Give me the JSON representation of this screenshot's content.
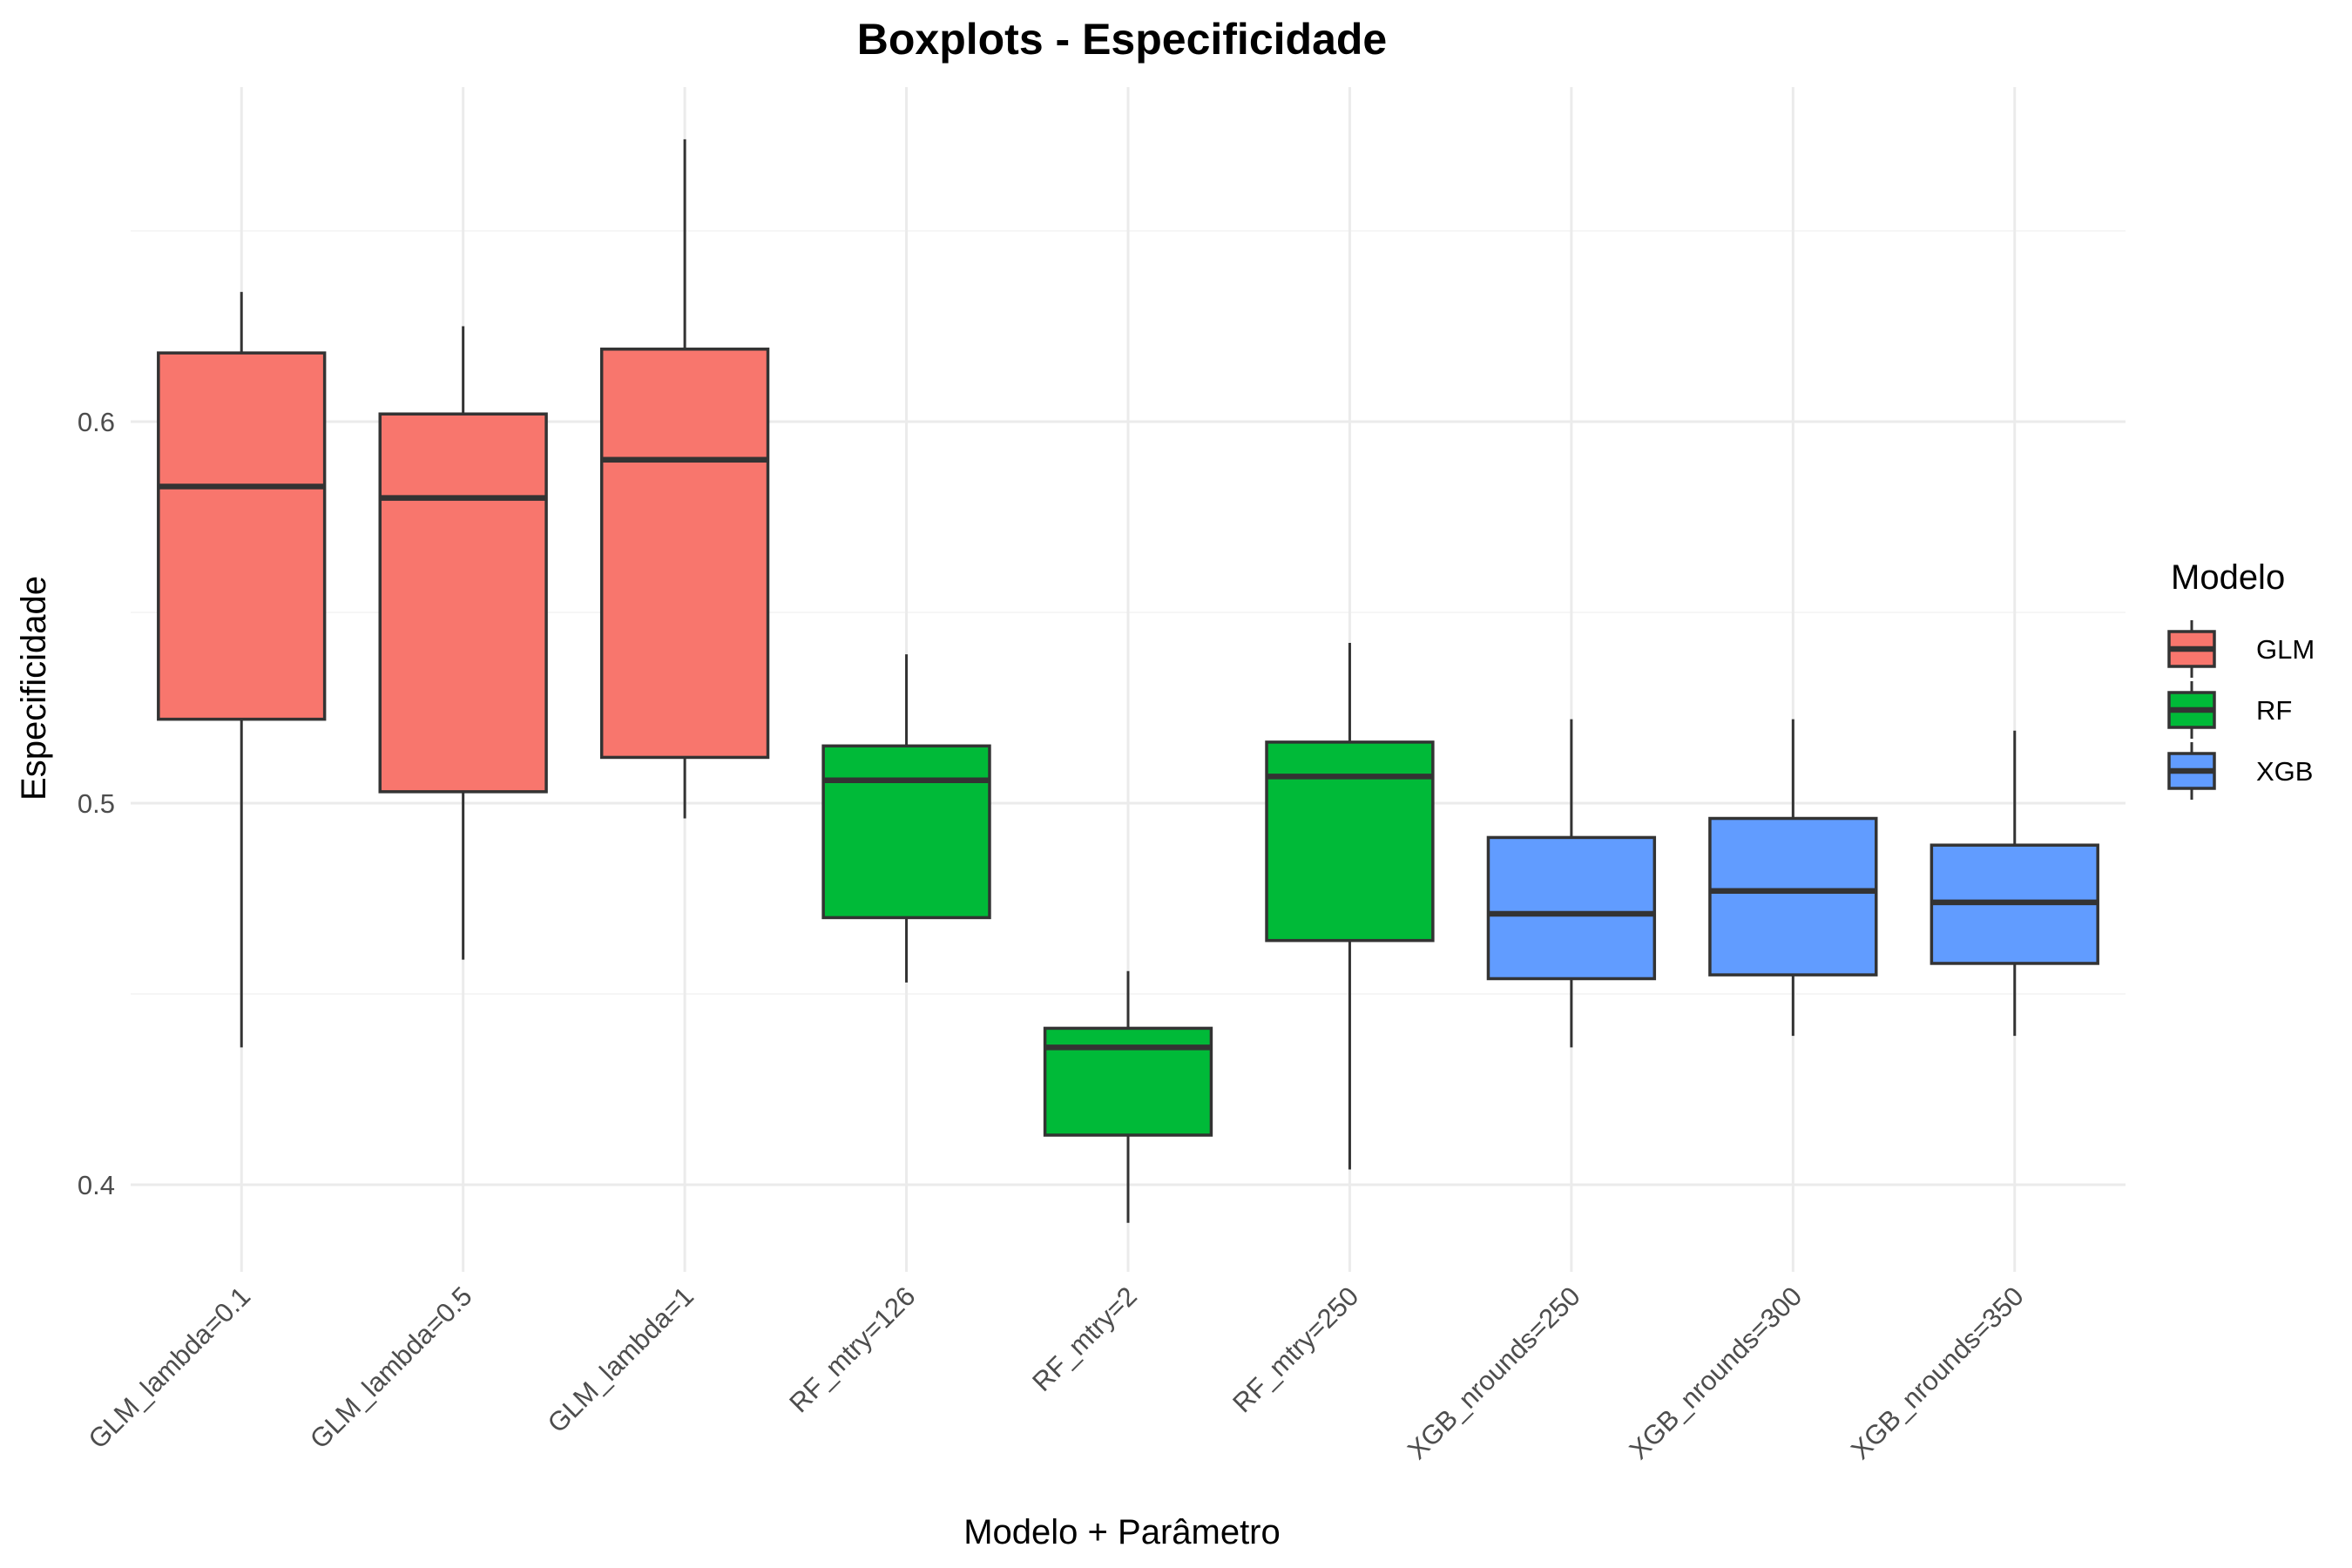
{
  "chart_data": {
    "type": "boxplot",
    "title": "Boxplots - Especificidade",
    "xlabel": "Modelo + Parâmetro",
    "ylabel": "Especificidade",
    "ylim": [
      0.375,
      0.685
    ],
    "yticks": [
      0.4,
      0.5,
      0.6
    ],
    "ytick_labels": [
      "0.4",
      "0.5",
      "0.6"
    ],
    "grid": true,
    "legend": {
      "title": "Modelo",
      "position": "right",
      "entries": [
        {
          "name": "GLM",
          "color": "#F8766D"
        },
        {
          "name": "RF",
          "color": "#00BA38"
        },
        {
          "name": "XGB",
          "color": "#619CFF"
        }
      ]
    },
    "categories": [
      "GLM_lambda=0.1",
      "GLM_lambda=0.5",
      "GLM_lambda=1",
      "RF_mtry=126",
      "RF_mtry=2",
      "RF_mtry=250",
      "XGB_nrounds=250",
      "XGB_nrounds=300",
      "XGB_nrounds=350"
    ],
    "boxes": [
      {
        "category": "GLM_lambda=0.1",
        "group": "GLM",
        "min": 0.436,
        "q1": 0.522,
        "median": 0.583,
        "q3": 0.618,
        "max": 0.634
      },
      {
        "category": "GLM_lambda=0.5",
        "group": "GLM",
        "min": 0.459,
        "q1": 0.503,
        "median": 0.58,
        "q3": 0.602,
        "max": 0.625
      },
      {
        "category": "GLM_lambda=1",
        "group": "GLM",
        "min": 0.496,
        "q1": 0.512,
        "median": 0.59,
        "q3": 0.619,
        "max": 0.674
      },
      {
        "category": "RF_mtry=126",
        "group": "RF",
        "min": 0.453,
        "q1": 0.47,
        "median": 0.506,
        "q3": 0.515,
        "max": 0.539
      },
      {
        "category": "RF_mtry=2",
        "group": "RF",
        "min": 0.39,
        "q1": 0.413,
        "median": 0.436,
        "q3": 0.441,
        "max": 0.456
      },
      {
        "category": "RF_mtry=250",
        "group": "RF",
        "min": 0.404,
        "q1": 0.464,
        "median": 0.507,
        "q3": 0.516,
        "max": 0.542
      },
      {
        "category": "XGB_nrounds=250",
        "group": "XGB",
        "min": 0.436,
        "q1": 0.454,
        "median": 0.471,
        "q3": 0.491,
        "max": 0.522
      },
      {
        "category": "XGB_nrounds=300",
        "group": "XGB",
        "min": 0.439,
        "q1": 0.455,
        "median": 0.477,
        "q3": 0.496,
        "max": 0.522
      },
      {
        "category": "XGB_nrounds=350",
        "group": "XGB",
        "min": 0.439,
        "q1": 0.458,
        "median": 0.474,
        "q3": 0.489,
        "max": 0.519
      }
    ]
  }
}
